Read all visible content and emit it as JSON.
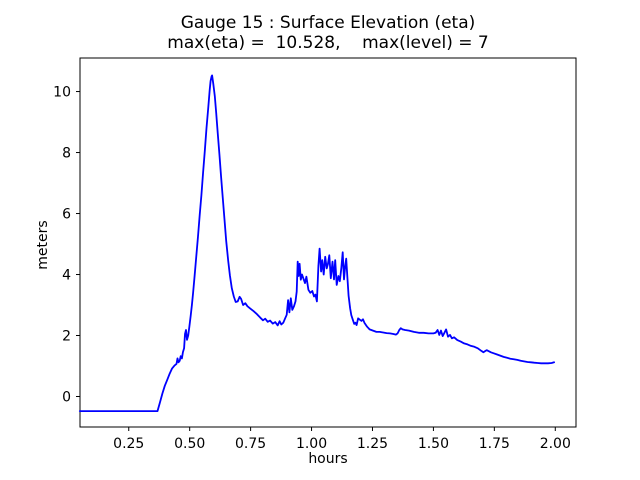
{
  "figure": {
    "background": "#ffffff",
    "title_line1": "Gauge 15 : Surface Elevation (eta)",
    "title_line2": "max(eta) =  10.528,    max(level) = 7",
    "max_eta": 10.528,
    "max_level": 7
  },
  "chart_data": {
    "type": "line",
    "title": "Gauge 15 : Surface Elevation (eta)",
    "subtitle": "max(eta) =  10.528,    max(level) = 7",
    "xlabel": "hours",
    "ylabel": "meters",
    "xlim": [
      0.05,
      2.085
    ],
    "ylim": [
      -1.0,
      11.1
    ],
    "x_ticks": [
      0.25,
      0.5,
      0.75,
      1.0,
      1.25,
      1.5,
      1.75,
      2.0
    ],
    "x_tick_labels": [
      "0.25",
      "0.50",
      "0.75",
      "1.00",
      "1.25",
      "1.50",
      "1.75",
      "2.00"
    ],
    "y_ticks": [
      0,
      2,
      4,
      6,
      8,
      10
    ],
    "y_tick_labels": [
      "0",
      "2",
      "4",
      "6",
      "8",
      "10"
    ],
    "grid": false,
    "legend": null,
    "line_color": "#0000ff",
    "axis_color": "#000000",
    "series": [
      {
        "name": "eta",
        "points": [
          [
            0.049,
            -0.48
          ],
          [
            0.15,
            -0.48
          ],
          [
            0.25,
            -0.48
          ],
          [
            0.368,
            -0.48
          ],
          [
            0.378,
            -0.2
          ],
          [
            0.388,
            0.1
          ],
          [
            0.398,
            0.35
          ],
          [
            0.408,
            0.55
          ],
          [
            0.418,
            0.75
          ],
          [
            0.428,
            0.92
          ],
          [
            0.438,
            1.02
          ],
          [
            0.446,
            1.07
          ],
          [
            0.45,
            1.25
          ],
          [
            0.454,
            1.12
          ],
          [
            0.459,
            1.17
          ],
          [
            0.463,
            1.32
          ],
          [
            0.468,
            1.25
          ],
          [
            0.472,
            1.45
          ],
          [
            0.477,
            1.58
          ],
          [
            0.481,
            2.05
          ],
          [
            0.485,
            2.18
          ],
          [
            0.489,
            1.86
          ],
          [
            0.494,
            2.0
          ],
          [
            0.499,
            2.3
          ],
          [
            0.504,
            2.65
          ],
          [
            0.509,
            3.0
          ],
          [
            0.514,
            3.4
          ],
          [
            0.52,
            3.95
          ],
          [
            0.527,
            4.6
          ],
          [
            0.534,
            5.25
          ],
          [
            0.541,
            5.95
          ],
          [
            0.548,
            6.6
          ],
          [
            0.555,
            7.35
          ],
          [
            0.562,
            8.05
          ],
          [
            0.569,
            8.8
          ],
          [
            0.576,
            9.45
          ],
          [
            0.582,
            10.05
          ],
          [
            0.586,
            10.35
          ],
          [
            0.59,
            10.5
          ],
          [
            0.592,
            10.528
          ],
          [
            0.597,
            10.25
          ],
          [
            0.603,
            9.85
          ],
          [
            0.609,
            9.3
          ],
          [
            0.615,
            8.65
          ],
          [
            0.622,
            7.95
          ],
          [
            0.629,
            7.2
          ],
          [
            0.636,
            6.5
          ],
          [
            0.643,
            5.8
          ],
          [
            0.65,
            5.1
          ],
          [
            0.658,
            4.45
          ],
          [
            0.665,
            3.97
          ],
          [
            0.673,
            3.55
          ],
          [
            0.681,
            3.28
          ],
          [
            0.689,
            3.1
          ],
          [
            0.697,
            3.12
          ],
          [
            0.705,
            3.27
          ],
          [
            0.711,
            3.2
          ],
          [
            0.719,
            3.0
          ],
          [
            0.728,
            3.06
          ],
          [
            0.737,
            2.96
          ],
          [
            0.748,
            2.89
          ],
          [
            0.762,
            2.8
          ],
          [
            0.776,
            2.7
          ],
          [
            0.79,
            2.58
          ],
          [
            0.801,
            2.5
          ],
          [
            0.81,
            2.55
          ],
          [
            0.82,
            2.45
          ],
          [
            0.83,
            2.49
          ],
          [
            0.841,
            2.39
          ],
          [
            0.851,
            2.44
          ],
          [
            0.861,
            2.33
          ],
          [
            0.869,
            2.47
          ],
          [
            0.876,
            2.36
          ],
          [
            0.884,
            2.42
          ],
          [
            0.891,
            2.55
          ],
          [
            0.898,
            2.68
          ],
          [
            0.904,
            3.16
          ],
          [
            0.909,
            2.76
          ],
          [
            0.915,
            3.22
          ],
          [
            0.921,
            2.84
          ],
          [
            0.928,
            2.96
          ],
          [
            0.934,
            3.12
          ],
          [
            0.939,
            3.44
          ],
          [
            0.943,
            4.42
          ],
          [
            0.947,
            3.95
          ],
          [
            0.951,
            4.35
          ],
          [
            0.956,
            3.83
          ],
          [
            0.961,
            4.0
          ],
          [
            0.967,
            3.86
          ],
          [
            0.973,
            3.72
          ],
          [
            0.979,
            3.93
          ],
          [
            0.987,
            3.5
          ],
          [
            0.995,
            3.4
          ],
          [
            1.003,
            3.46
          ],
          [
            1.01,
            3.28
          ],
          [
            1.016,
            3.34
          ],
          [
            1.022,
            3.12
          ],
          [
            1.028,
            4.28
          ],
          [
            1.033,
            4.85
          ],
          [
            1.039,
            4.1
          ],
          [
            1.044,
            4.47
          ],
          [
            1.05,
            4.0
          ],
          [
            1.056,
            4.58
          ],
          [
            1.062,
            4.2
          ],
          [
            1.067,
            4.34
          ],
          [
            1.073,
            4.63
          ],
          [
            1.079,
            3.88
          ],
          [
            1.086,
            4.42
          ],
          [
            1.092,
            3.84
          ],
          [
            1.097,
            4.47
          ],
          [
            1.103,
            3.66
          ],
          [
            1.11,
            3.95
          ],
          [
            1.116,
            3.78
          ],
          [
            1.122,
            4.2
          ],
          [
            1.128,
            4.73
          ],
          [
            1.133,
            3.84
          ],
          [
            1.138,
            4.28
          ],
          [
            1.142,
            4.52
          ],
          [
            1.147,
            3.9
          ],
          [
            1.152,
            3.3
          ],
          [
            1.158,
            2.9
          ],
          [
            1.163,
            2.67
          ],
          [
            1.17,
            2.5
          ],
          [
            1.175,
            2.38
          ],
          [
            1.18,
            2.42
          ],
          [
            1.185,
            2.34
          ],
          [
            1.191,
            2.56
          ],
          [
            1.198,
            2.52
          ],
          [
            1.205,
            2.48
          ],
          [
            1.211,
            2.53
          ],
          [
            1.217,
            2.42
          ],
          [
            1.228,
            2.29
          ],
          [
            1.238,
            2.2
          ],
          [
            1.252,
            2.16
          ],
          [
            1.266,
            2.12
          ],
          [
            1.28,
            2.12
          ],
          [
            1.294,
            2.1
          ],
          [
            1.308,
            2.08
          ],
          [
            1.322,
            2.07
          ],
          [
            1.336,
            2.05
          ],
          [
            1.346,
            2.03
          ],
          [
            1.353,
            2.07
          ],
          [
            1.36,
            2.18
          ],
          [
            1.366,
            2.24
          ],
          [
            1.373,
            2.2
          ],
          [
            1.384,
            2.18
          ],
          [
            1.4,
            2.16
          ],
          [
            1.42,
            2.12
          ],
          [
            1.44,
            2.09
          ],
          [
            1.46,
            2.09
          ],
          [
            1.48,
            2.07
          ],
          [
            1.5,
            2.07
          ],
          [
            1.509,
            2.09
          ],
          [
            1.517,
            2.18
          ],
          [
            1.524,
            2.02
          ],
          [
            1.531,
            2.16
          ],
          [
            1.538,
            1.98
          ],
          [
            1.545,
            2.09
          ],
          [
            1.552,
            2.2
          ],
          [
            1.56,
            1.96
          ],
          [
            1.568,
            2.02
          ],
          [
            1.576,
            1.91
          ],
          [
            1.585,
            1.94
          ],
          [
            1.598,
            1.85
          ],
          [
            1.612,
            1.8
          ],
          [
            1.626,
            1.74
          ],
          [
            1.64,
            1.71
          ],
          [
            1.654,
            1.66
          ],
          [
            1.668,
            1.63
          ],
          [
            1.682,
            1.58
          ],
          [
            1.696,
            1.5
          ],
          [
            1.705,
            1.45
          ],
          [
            1.712,
            1.49
          ],
          [
            1.719,
            1.52
          ],
          [
            1.726,
            1.49
          ],
          [
            1.736,
            1.45
          ],
          [
            1.746,
            1.42
          ],
          [
            1.76,
            1.38
          ],
          [
            1.774,
            1.34
          ],
          [
            1.788,
            1.3
          ],
          [
            1.802,
            1.27
          ],
          [
            1.816,
            1.24
          ],
          [
            1.83,
            1.22
          ],
          [
            1.844,
            1.2
          ],
          [
            1.858,
            1.17
          ],
          [
            1.872,
            1.15
          ],
          [
            1.886,
            1.13
          ],
          [
            1.9,
            1.12
          ],
          [
            1.914,
            1.11
          ],
          [
            1.928,
            1.1
          ],
          [
            1.942,
            1.09
          ],
          [
            1.956,
            1.09
          ],
          [
            1.97,
            1.09
          ],
          [
            1.985,
            1.1
          ],
          [
            1.995,
            1.12
          ]
        ]
      }
    ]
  }
}
